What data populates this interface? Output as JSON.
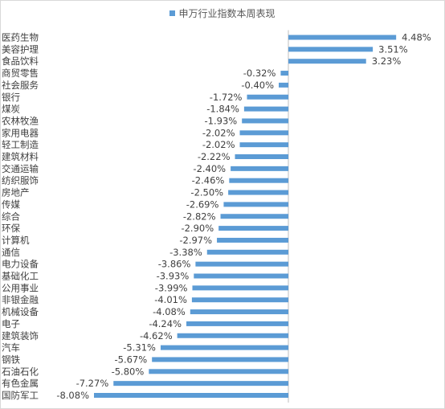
{
  "chart_data": {
    "type": "bar",
    "orientation": "horizontal",
    "legend": [
      "申万行业指数本周表现"
    ],
    "legend_position": "top",
    "grid": false,
    "color": "#5b9bd5",
    "unit": "%",
    "xlim": [
      -8.08,
      4.48
    ],
    "categories": [
      "医药生物",
      "美容护理",
      "食品饮料",
      "商贸零售",
      "社会服务",
      "银行",
      "煤炭",
      "农林牧渔",
      "家用电器",
      "轻工制造",
      "建筑材料",
      "交通运输",
      "纺织服饰",
      "房地产",
      "传媒",
      "综合",
      "环保",
      "计算机",
      "通信",
      "电力设备",
      "基础化工",
      "公用事业",
      "非银金融",
      "机械设备",
      "电子",
      "建筑装饰",
      "汽车",
      "钢铁",
      "石油石化",
      "有色金属",
      "国防军工"
    ],
    "values": [
      4.48,
      3.51,
      3.23,
      -0.32,
      -0.4,
      -1.72,
      -1.84,
      -1.93,
      -2.02,
      -2.02,
      -2.22,
      -2.4,
      -2.46,
      -2.5,
      -2.69,
      -2.82,
      -2.9,
      -2.97,
      -3.38,
      -3.86,
      -3.93,
      -3.99,
      -4.01,
      -4.08,
      -4.24,
      -4.62,
      -5.31,
      -5.67,
      -5.8,
      -7.27,
      -8.08
    ],
    "data_labels": [
      "4.48%",
      "3.51%",
      "3.23%",
      "-0.32%",
      "-0.40%",
      "-1.72%",
      "-1.84%",
      "-1.93%",
      "-2.02%",
      "-2.02%",
      "-2.22%",
      "-2.40%",
      "-2.46%",
      "-2.50%",
      "-2.69%",
      "-2.82%",
      "-2.90%",
      "-2.97%",
      "-3.38%",
      "-3.86%",
      "-3.93%",
      "-3.99%",
      "-4.01%",
      "-4.08%",
      "-4.24%",
      "-4.62%",
      "-5.31%",
      "-5.67%",
      "-5.80%",
      "-7.27%",
      "-8.08%"
    ]
  }
}
